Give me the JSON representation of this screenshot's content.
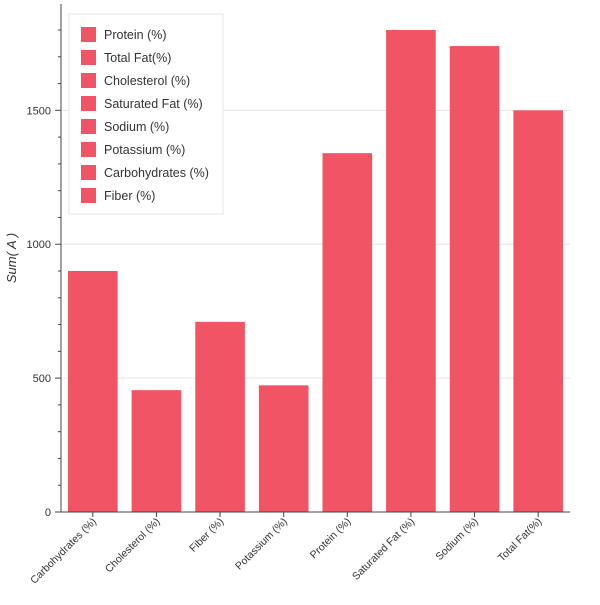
{
  "chart_data": {
    "type": "bar",
    "ylabel": "Sum( A )",
    "xlabel": "",
    "categories": [
      "Carbohydrates (%)",
      "Cholesterol (%)",
      "Fiber (%)",
      "Potassium (%)",
      "Protein (%)",
      "Saturated Fat (%)",
      "Sodium (%)",
      "Total Fat(%)"
    ],
    "values": [
      900,
      455,
      710,
      473,
      1340,
      1800,
      1740,
      1500
    ],
    "ylim": [
      0,
      1800
    ],
    "yticks": [
      0,
      500,
      1000,
      1500
    ],
    "ytick_labels": [
      "0",
      "500",
      "1000",
      "1500"
    ],
    "grid": true,
    "legend": {
      "placement": "top-left",
      "entries": [
        "Protein (%)",
        "Total Fat(%)",
        "Cholesterol (%)",
        "Saturated Fat (%)",
        "Sodium (%)",
        "Potassium (%)",
        "Carbohydrates (%)",
        "Fiber (%)"
      ]
    },
    "colors": {
      "bar": "#f15464",
      "grid": "#e6e6e6",
      "axis": "#444444",
      "text": "#333333"
    }
  }
}
